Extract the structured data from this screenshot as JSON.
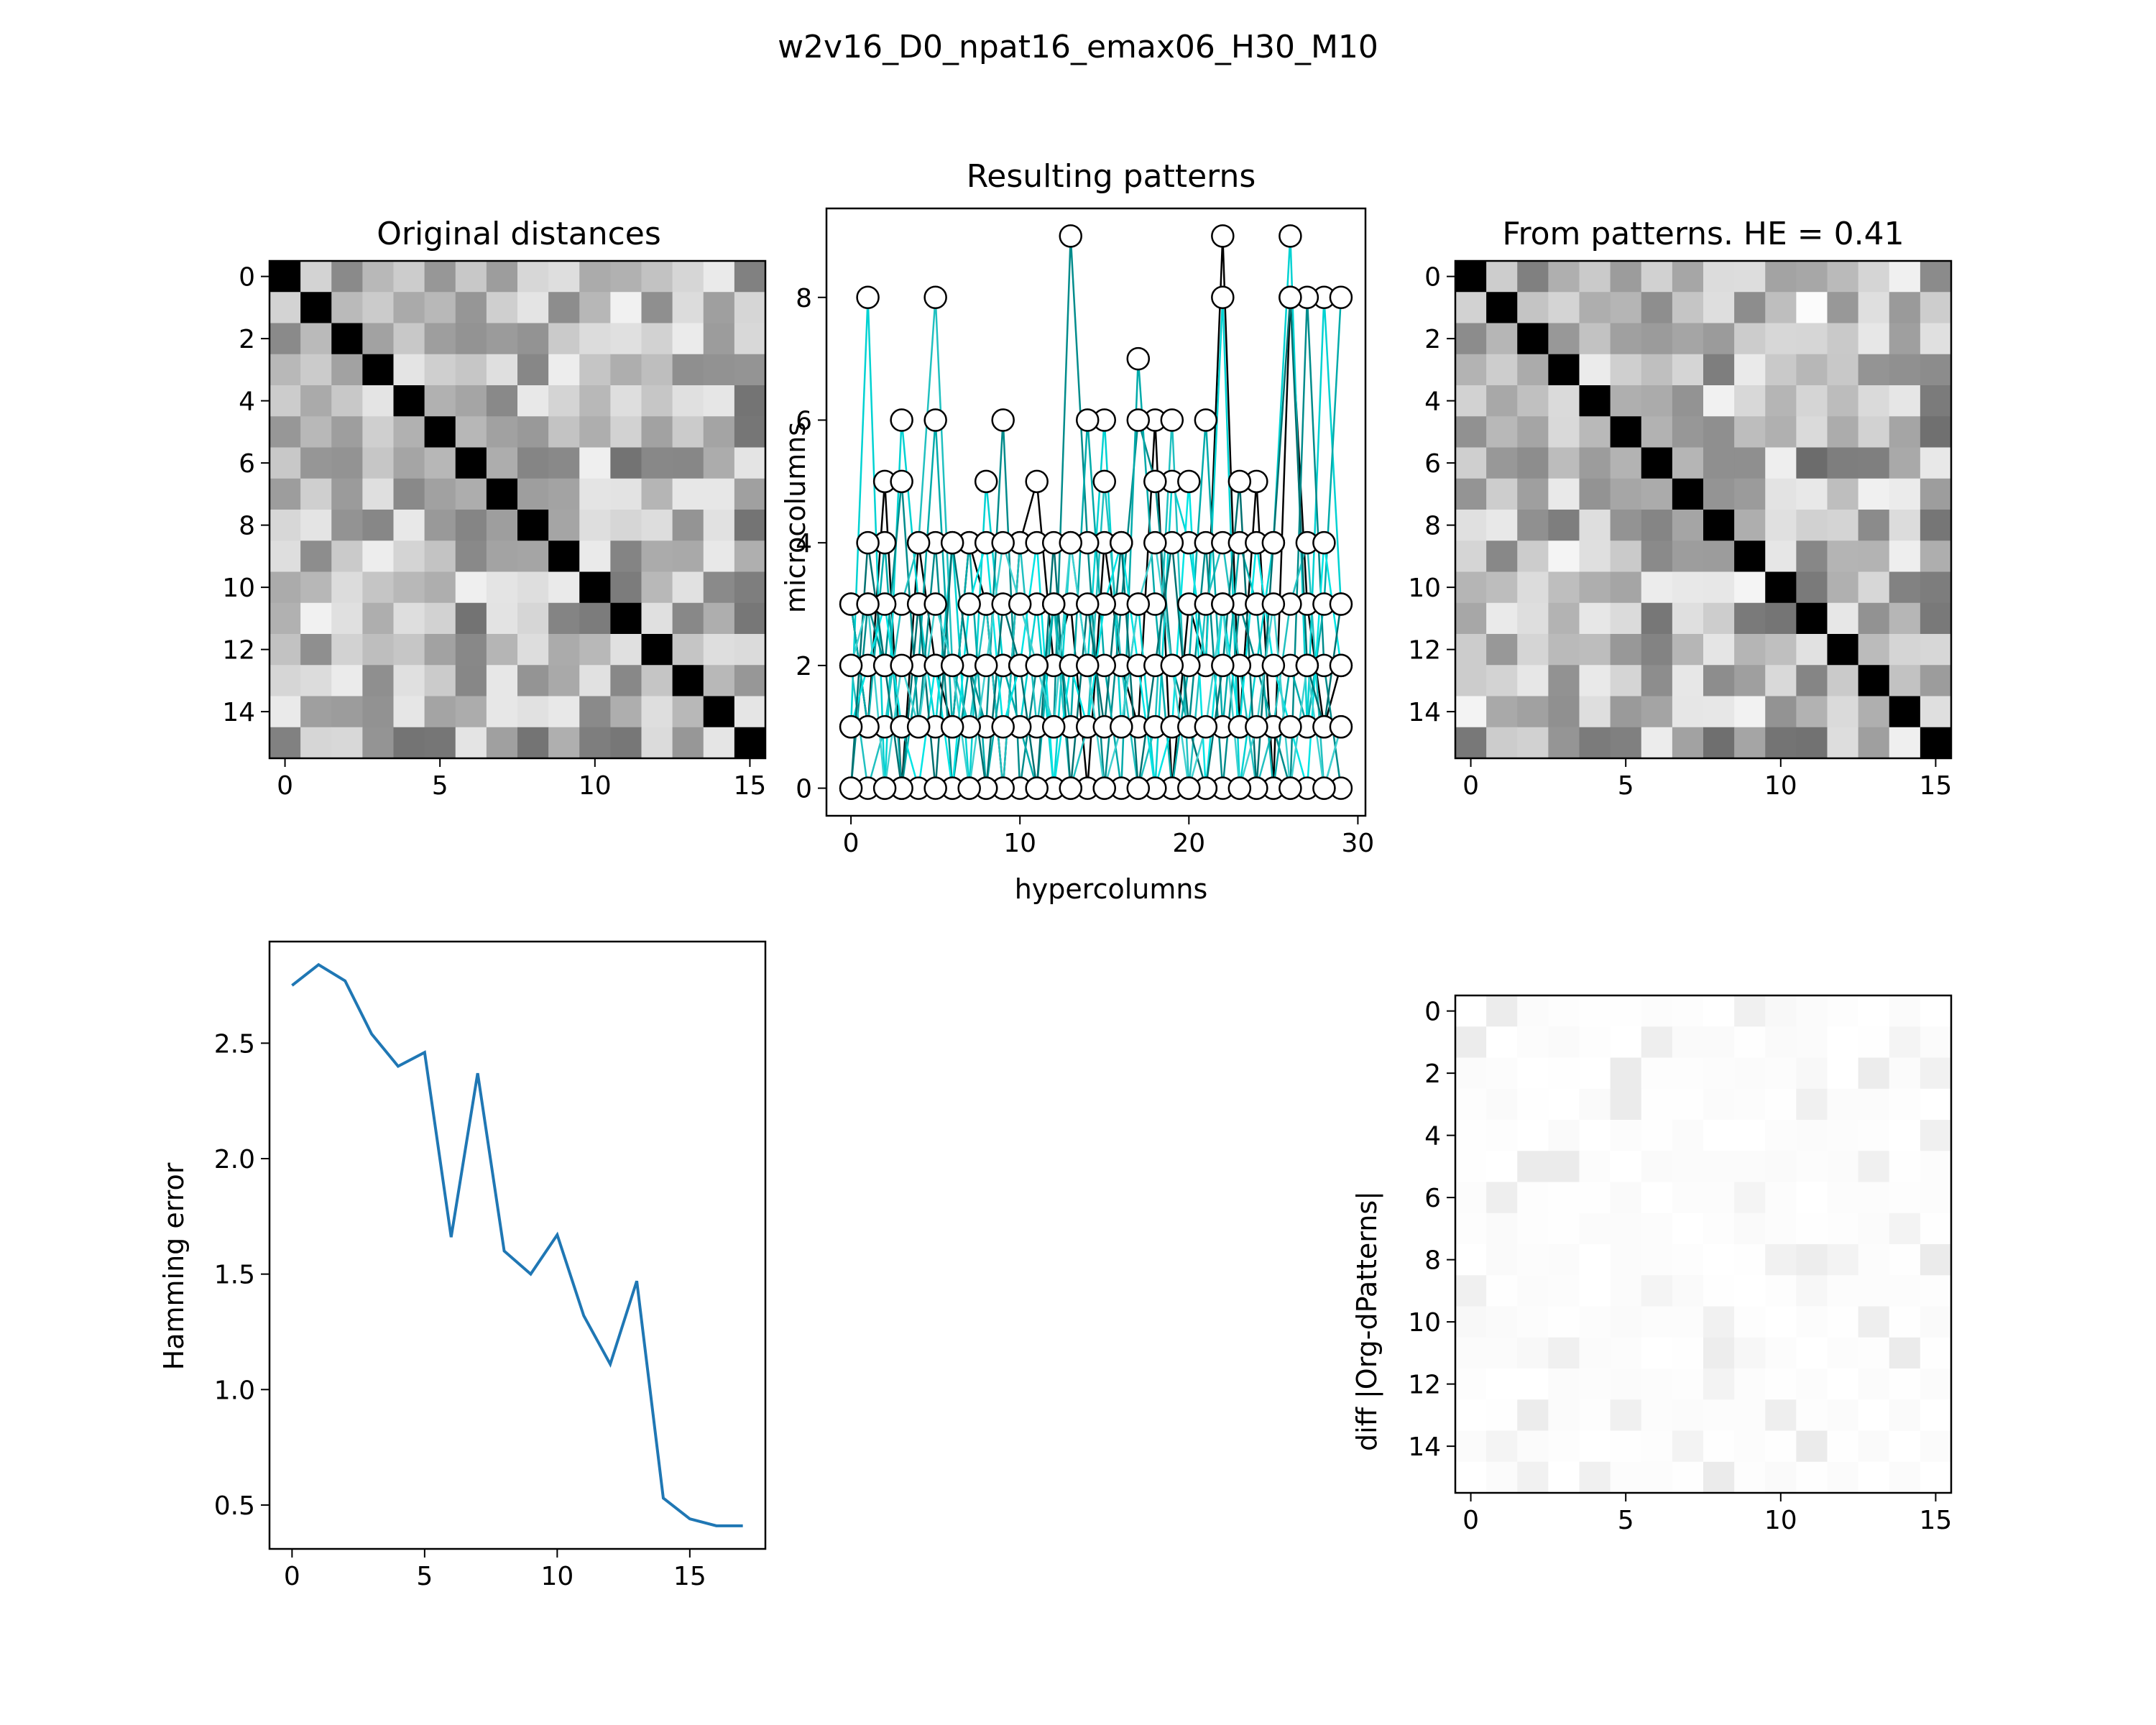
{
  "figure": {
    "suptitle": "w2v16_D0_npat16_emax06_H30_M10"
  },
  "chart_data": [
    {
      "id": "original",
      "type": "heatmap",
      "title": "Original distances",
      "xlabel": "",
      "ylabel": "",
      "xticks": [
        0,
        5,
        10,
        15
      ],
      "yticks": [
        0,
        2,
        4,
        6,
        8,
        10,
        12,
        14
      ],
      "colormap": "gray_r",
      "size": 16,
      "seed": 17
    },
    {
      "id": "patterns",
      "type": "line",
      "title": "Resulting patterns",
      "xlabel": "hypercolumns",
      "ylabel": "microcolumns",
      "xlim": [
        -1.45,
        30.45
      ],
      "ylim": [
        -0.45,
        9.45
      ],
      "xticks": [
        0,
        10,
        20,
        30
      ],
      "yticks": [
        0,
        2,
        4,
        6,
        8
      ],
      "marker_face": "#ffffff",
      "marker_edge": "#000000",
      "series": [
        {
          "color": "#000000",
          "values": [
            3,
            1,
            5,
            0,
            4,
            2,
            1,
            4,
            3,
            0,
            4,
            5,
            2,
            3,
            0,
            4,
            2,
            1,
            6,
            0,
            3,
            2,
            9,
            1,
            5,
            0,
            8,
            3,
            1,
            2
          ]
        },
        {
          "color": "#00d2d2",
          "values": [
            1,
            8,
            0,
            6,
            3,
            1,
            4,
            0,
            5,
            2,
            1,
            3,
            0,
            4,
            2,
            6,
            1,
            3,
            0,
            5,
            4,
            2,
            8,
            0,
            2,
            4,
            9,
            1,
            8,
            3
          ]
        },
        {
          "color": "#008b8b",
          "values": [
            0,
            3,
            2,
            5,
            1,
            4,
            0,
            2,
            1,
            6,
            0,
            2,
            1,
            9,
            4,
            0,
            3,
            6,
            5,
            2,
            1,
            4,
            0,
            3,
            2,
            1,
            0,
            8,
            2,
            0
          ]
        },
        {
          "color": "#20c0c0",
          "values": [
            2,
            0,
            1,
            3,
            4,
            8,
            2,
            1,
            3,
            0,
            4,
            1,
            3,
            0,
            1,
            5,
            2,
            0,
            1,
            6,
            0,
            3,
            4,
            2,
            0,
            1,
            3,
            4,
            0,
            1
          ]
        },
        {
          "color": "#00aaaa",
          "values": [
            3,
            1,
            4,
            0,
            2,
            6,
            1,
            4,
            0,
            2,
            1,
            0,
            3,
            1,
            6,
            2,
            0,
            7,
            3,
            0,
            2,
            6,
            1,
            4,
            3,
            0,
            2,
            1,
            3,
            8
          ]
        },
        {
          "color": "#00e5e5",
          "values": [
            1,
            2,
            3,
            1,
            0,
            2,
            0,
            3,
            4,
            1,
            2,
            4,
            0,
            2,
            1,
            3,
            4,
            2,
            0,
            1,
            5,
            0,
            3,
            1,
            4,
            2,
            1,
            0,
            4,
            2
          ]
        },
        {
          "color": "#007070",
          "values": [
            0,
            4,
            2,
            0,
            3,
            0,
            4,
            2,
            0,
            3,
            2,
            0,
            4,
            0,
            3,
            1,
            4,
            0,
            2,
            4,
            1,
            0,
            2,
            5,
            0,
            4,
            8,
            2,
            1,
            3
          ]
        },
        {
          "color": "#40d0d0",
          "values": [
            2,
            3,
            0,
            2,
            1,
            3,
            2,
            0,
            2,
            4,
            3,
            2,
            1,
            4,
            2,
            0,
            1,
            3,
            4,
            2,
            0,
            1,
            3,
            0,
            1,
            3,
            0,
            2,
            0,
            1
          ]
        }
      ]
    },
    {
      "id": "frompatterns",
      "type": "heatmap",
      "title": "From patterns. HE = 0.41",
      "xlabel": "",
      "ylabel": "",
      "xticks": [
        0,
        5,
        10,
        15
      ],
      "yticks": [
        0,
        2,
        4,
        6,
        8,
        10,
        12,
        14
      ],
      "colormap": "gray_r",
      "size": 16,
      "seed": 17
    },
    {
      "id": "hamming",
      "type": "line",
      "title": "",
      "xlabel": "",
      "ylabel": "Hamming error",
      "xlim": [
        -0.85,
        17.85
      ],
      "ylim": [
        0.31,
        2.94
      ],
      "xticks": [
        0,
        5,
        10,
        15
      ],
      "yticks": [
        0.5,
        1.0,
        1.5,
        2.0,
        2.5
      ],
      "ytick_labels": [
        "0.5",
        "1.0",
        "1.5",
        "2.0",
        "2.5"
      ],
      "color": "#1f77b4",
      "x": [
        0,
        1,
        2,
        3,
        4,
        5,
        6,
        7,
        8,
        9,
        10,
        11,
        12,
        13,
        14,
        15,
        16,
        17
      ],
      "values": [
        2.75,
        2.84,
        2.77,
        2.54,
        2.4,
        2.46,
        1.66,
        2.37,
        1.6,
        1.5,
        1.67,
        1.32,
        1.11,
        1.47,
        0.53,
        0.44,
        0.41,
        0.41
      ]
    },
    {
      "id": "diff",
      "type": "heatmap",
      "title": "",
      "xlabel": "",
      "ylabel": "diff |Org-dPatterns|",
      "xticks": [
        0,
        5,
        10,
        15
      ],
      "yticks": [
        0,
        2,
        4,
        6,
        8,
        10,
        12,
        14
      ],
      "colormap": "gray_r",
      "size": 16,
      "seed": 29
    }
  ]
}
